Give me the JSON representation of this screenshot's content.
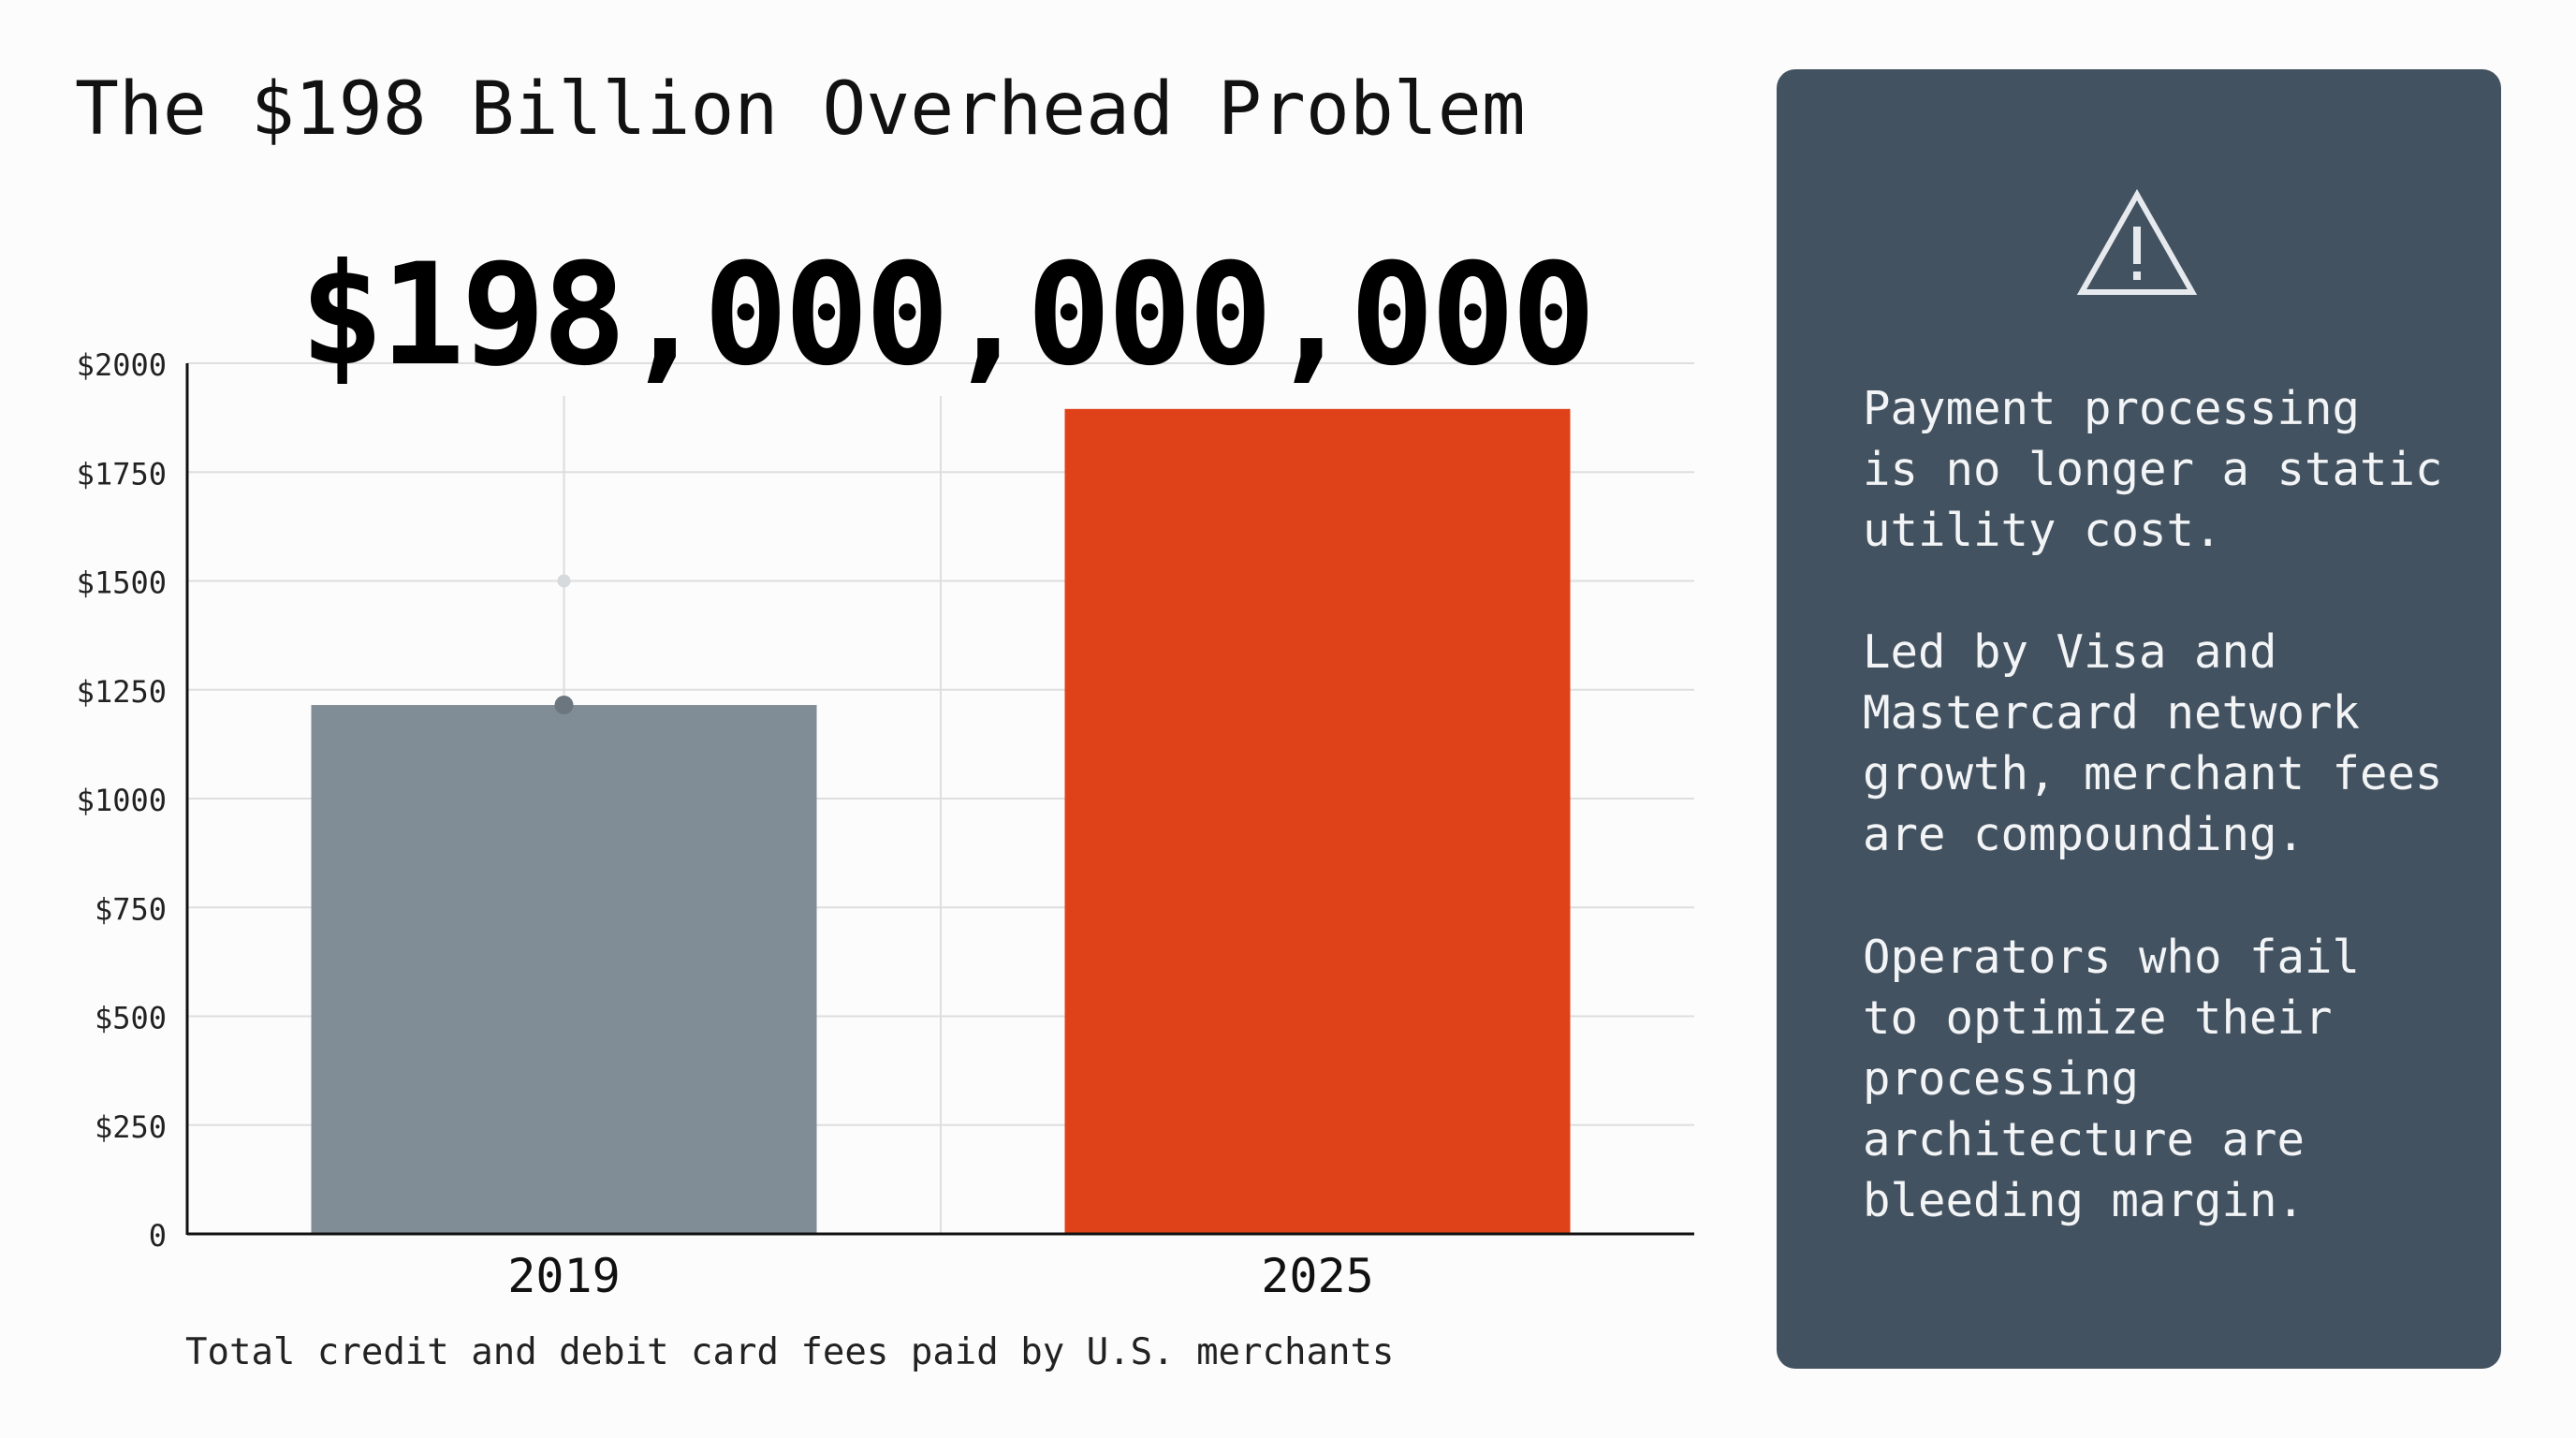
{
  "title": "The $198 Billion Overhead Problem",
  "headline_number": "$198,000,000,000",
  "caption": "Total credit and debit card fees paid by U.S. merchants",
  "panel": {
    "icon": "warning-triangle-icon",
    "paragraphs": [
      "Payment processing\nis no longer a static\nutility cost.",
      "Led by Visa and\nMastercard network\ngrowth, merchant fees\nare compounding.",
      "Operators who fail\nto optimize their\nprocessing\narchitecture are\nbleeding margin."
    ]
  },
  "colors": {
    "bar_2019": "#818d96",
    "bar_2025": "#df4219",
    "panel_bg": "#435260",
    "panel_text": "#f2f4f6"
  },
  "chart_data": {
    "type": "bar",
    "categories": [
      "2019",
      "2025"
    ],
    "values": [
      1215,
      1895
    ],
    "ylim": [
      0,
      2000
    ],
    "yticks": [
      0,
      250,
      500,
      750,
      1000,
      1250,
      1500,
      1750,
      2000
    ],
    "ytick_labels": [
      "0",
      "$250",
      "$500",
      "$750",
      "$1000",
      "$1250",
      "$1500",
      "$1750",
      "$2000"
    ],
    "xlabel": "",
    "ylabel": "",
    "grid": true,
    "legend": "none"
  }
}
